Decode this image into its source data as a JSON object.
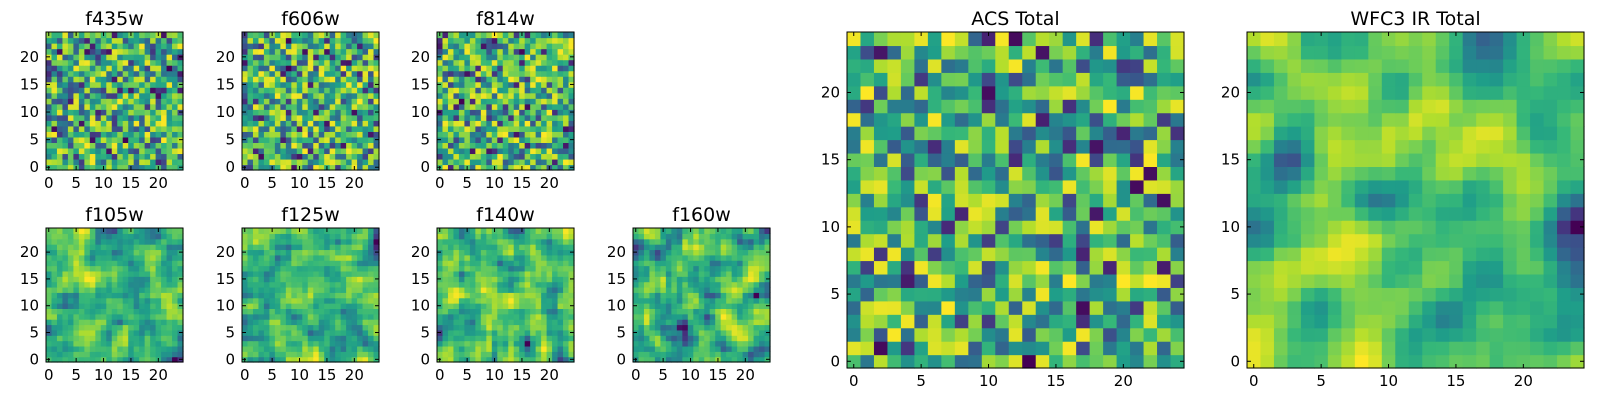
{
  "chart_data": [
    {
      "type": "heatmap",
      "title": "f435w",
      "shape": [
        25,
        25
      ],
      "colormap": "viridis",
      "seed": 11,
      "smoothness": 0,
      "xticks": [
        0,
        5,
        10,
        15,
        20
      ],
      "yticks": [
        0,
        5,
        10,
        15,
        20
      ],
      "xlim": [
        -0.5,
        24.5
      ],
      "ylim": [
        -0.5,
        24.5
      ]
    },
    {
      "type": "heatmap",
      "title": "f606w",
      "shape": [
        25,
        25
      ],
      "colormap": "viridis",
      "seed": 23,
      "smoothness": 0,
      "xticks": [
        0,
        5,
        10,
        15,
        20
      ],
      "yticks": [
        0,
        5,
        10,
        15,
        20
      ],
      "xlim": [
        -0.5,
        24.5
      ],
      "ylim": [
        -0.5,
        24.5
      ]
    },
    {
      "type": "heatmap",
      "title": "f814w",
      "shape": [
        25,
        25
      ],
      "colormap": "viridis",
      "seed": 37,
      "smoothness": 0,
      "xticks": [
        0,
        5,
        10,
        15,
        20
      ],
      "yticks": [
        0,
        5,
        10,
        15,
        20
      ],
      "xlim": [
        -0.5,
        24.5
      ],
      "ylim": [
        -0.5,
        24.5
      ]
    },
    {
      "type": "heatmap",
      "title": "f105w",
      "shape": [
        25,
        25
      ],
      "colormap": "viridis",
      "seed": 41,
      "smoothness": 1,
      "xticks": [
        0,
        5,
        10,
        15,
        20
      ],
      "yticks": [
        0,
        5,
        10,
        15,
        20
      ],
      "xlim": [
        -0.5,
        24.5
      ],
      "ylim": [
        -0.5,
        24.5
      ]
    },
    {
      "type": "heatmap",
      "title": "f125w",
      "shape": [
        25,
        25
      ],
      "colormap": "viridis",
      "seed": 53,
      "smoothness": 1,
      "xticks": [
        0,
        5,
        10,
        15,
        20
      ],
      "yticks": [
        0,
        5,
        10,
        15,
        20
      ],
      "xlim": [
        -0.5,
        24.5
      ],
      "ylim": [
        -0.5,
        24.5
      ]
    },
    {
      "type": "heatmap",
      "title": "f140w",
      "shape": [
        25,
        25
      ],
      "colormap": "viridis",
      "seed": 67,
      "smoothness": 1,
      "xticks": [
        0,
        5,
        10,
        15,
        20
      ],
      "yticks": [
        0,
        5,
        10,
        15,
        20
      ],
      "xlim": [
        -0.5,
        24.5
      ],
      "ylim": [
        -0.5,
        24.5
      ]
    },
    {
      "type": "heatmap",
      "title": "f160w",
      "shape": [
        25,
        25
      ],
      "colormap": "viridis",
      "seed": 79,
      "smoothness": 1,
      "xticks": [
        0,
        5,
        10,
        15,
        20
      ],
      "yticks": [
        0,
        5,
        10,
        15,
        20
      ],
      "xlim": [
        -0.5,
        24.5
      ],
      "ylim": [
        -0.5,
        24.5
      ]
    },
    {
      "type": "heatmap",
      "title": "ACS Total",
      "shape": [
        25,
        25
      ],
      "colormap": "viridis",
      "seed": 97,
      "smoothness": 0,
      "xticks": [
        0,
        5,
        10,
        15,
        20
      ],
      "yticks": [
        0,
        5,
        10,
        15,
        20
      ],
      "xlim": [
        -0.5,
        24.5
      ],
      "ylim": [
        -0.5,
        24.5
      ]
    },
    {
      "type": "heatmap",
      "title": "WFC3 IR Total",
      "shape": [
        25,
        25
      ],
      "colormap": "viridis",
      "seed": 113,
      "smoothness": 2,
      "xticks": [
        0,
        5,
        10,
        15,
        20
      ],
      "yticks": [
        0,
        5,
        10,
        15,
        20
      ],
      "xlim": [
        -0.5,
        24.5
      ],
      "ylim": [
        -0.5,
        24.5
      ]
    }
  ]
}
